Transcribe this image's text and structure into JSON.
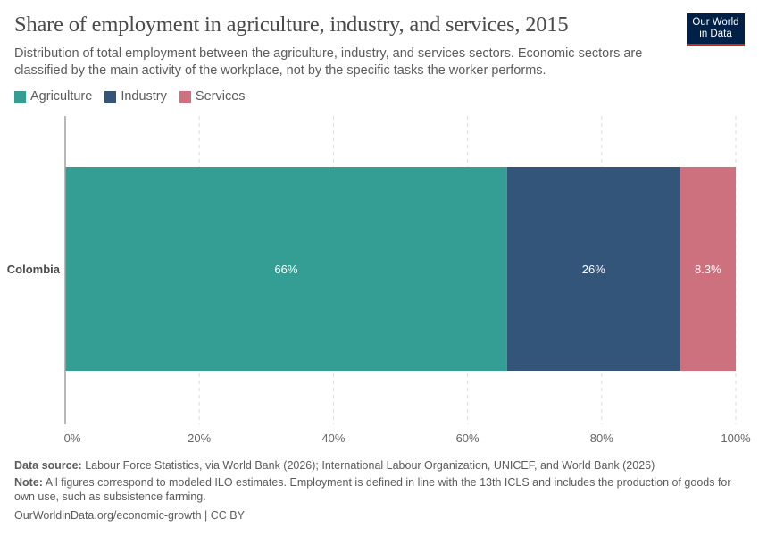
{
  "header": {
    "title": "Share of employment in agriculture, industry, and services, 2015",
    "subtitle": "Distribution of total employment between the agriculture, industry, and services sectors. Economic sectors are classified by the main activity of the workplace, not by the specific tasks the worker performs.",
    "logo_line1": "Our World",
    "logo_line2": "in Data"
  },
  "chart_data": {
    "type": "bar",
    "orientation": "horizontal",
    "stacked": true,
    "title": "Share of employment in agriculture, industry, and services, 2015",
    "categories": [
      "Colombia"
    ],
    "series": [
      {
        "name": "Agriculture",
        "values": [
          65.9
        ],
        "label": "66%",
        "color": "#349e94"
      },
      {
        "name": "Industry",
        "values": [
          25.8
        ],
        "label": "26%",
        "color": "#33557a"
      },
      {
        "name": "Services",
        "values": [
          8.3
        ],
        "label": "8.3%",
        "color": "#cd717f"
      }
    ],
    "xlim": [
      0,
      100
    ],
    "xticks": [
      0,
      20,
      40,
      60,
      80,
      100
    ],
    "xtick_labels": [
      "0%",
      "20%",
      "40%",
      "60%",
      "80%",
      "100%"
    ],
    "xlabel": "",
    "ylabel": "",
    "grid": "vertical dashed",
    "legend_position": "top-left"
  },
  "footer": {
    "source_label": "Data source:",
    "source_text": " Labour Force Statistics, via World Bank (2026); International Labour Organization, UNICEF, and World Bank (2026)",
    "note_label": "Note:",
    "note_text": " All figures correspond to modeled ILO estimates. Employment is defined in line with the 13th ICLS and includes the production of goods for own use, such as subsistence farming.",
    "url": "OurWorldinData.org/economic-growth | CC BY"
  }
}
